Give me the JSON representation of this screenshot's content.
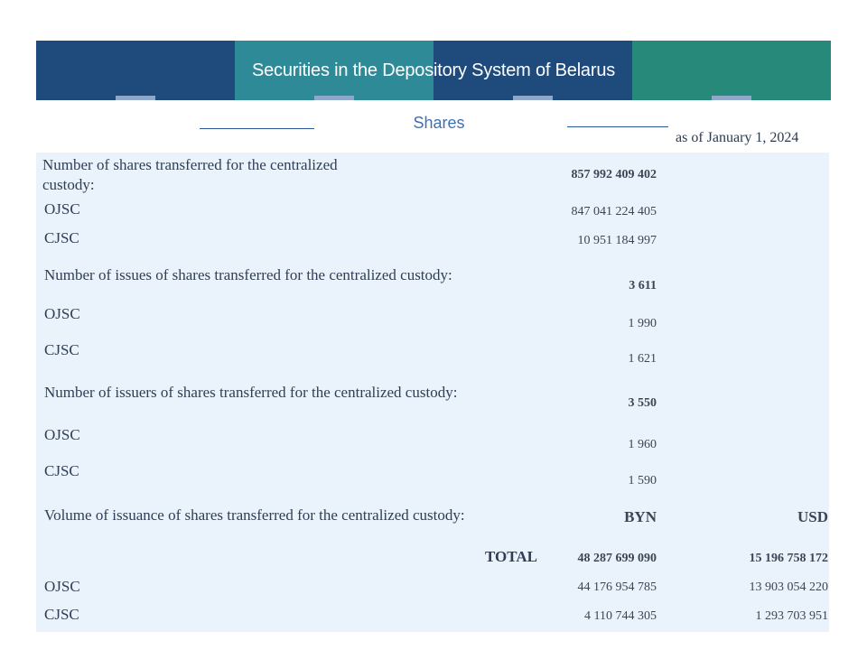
{
  "header": {
    "title": "Securities in the Depository System of Belarus",
    "subtitle": "Shares",
    "as_of": "as of January  1, 2024"
  },
  "sections": {
    "shares_transferred": {
      "label": "Number of shares transferred for the centralized custody:",
      "total": "857 992 409 402",
      "ojsc_label": "OJSC",
      "ojsc": "847 041 224 405",
      "cjsc_label": "CJSC",
      "cjsc": "10 951 184 997"
    },
    "issues": {
      "label": "Number of issues of shares transferred for the centralized  custody:",
      "total": "3 611",
      "ojsc_label": "OJSC",
      "ojsc": "1 990",
      "cjsc_label": "CJSC",
      "cjsc": "1 621"
    },
    "issuers": {
      "label": "Number of issuers of shares transferred for the centralized  custody:",
      "total": "3 550",
      "ojsc_label": "OJSC",
      "ojsc": "1 960",
      "cjsc_label": "CJSC",
      "cjsc": "1 590"
    },
    "volume": {
      "label": "Volume of issuance of shares transferred for the centralized  custody:",
      "col_byn": "BYN",
      "col_usd": "USD",
      "total_label": "TOTAL",
      "total_byn": "48 287 699 090",
      "total_usd": "15 196 758 172",
      "ojsc_label": "OJSC",
      "ojsc_byn": "44 176 954 785",
      "ojsc_usd": "13 903 054 220",
      "cjsc_label": "CJSC",
      "cjsc_byn": "4 110 744 305",
      "cjsc_usd": "1 293 703 951"
    }
  }
}
